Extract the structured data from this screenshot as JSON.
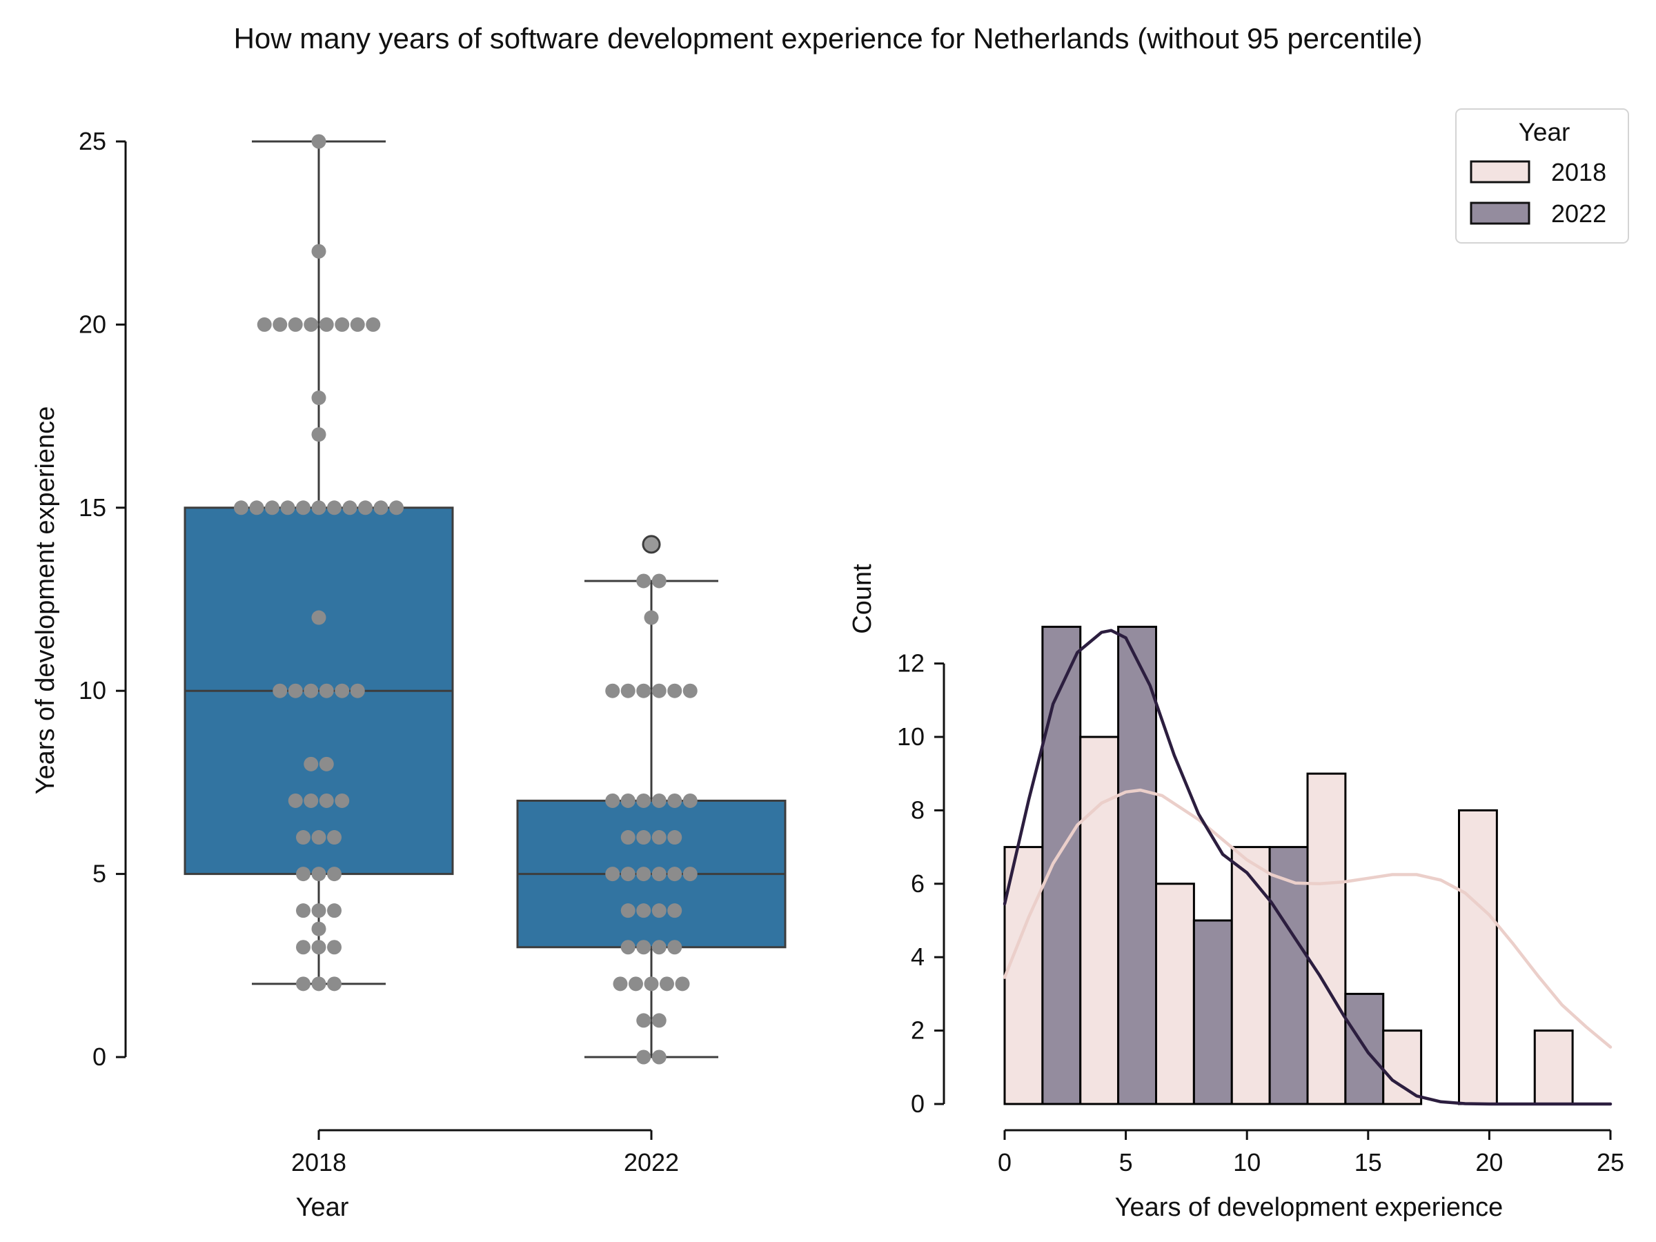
{
  "title": "How many years of software development experience for Netherlands (without 95 percentile)",
  "colors": {
    "box_fill": "#3274A1",
    "box_edge": "#3d3d3d",
    "swarm_points": "#8c8c8c",
    "hist_2018": "#F3E3E1",
    "hist_2022": "#948C9E",
    "kde_2018": "#EBCFCA",
    "kde_2022": "#2C1E3F",
    "axis": "#111111"
  },
  "chart_data": [
    {
      "type": "box",
      "xlabel": "Year",
      "ylabel": "Years of development experience",
      "categories": [
        "2018",
        "2022"
      ],
      "yticks": [
        "0",
        "5",
        "10",
        "15",
        "20",
        "25"
      ],
      "ylim": [
        -1,
        25
      ],
      "boxes": [
        {
          "name": "2018",
          "whisker_low": 2,
          "q1": 5,
          "median": 10,
          "q3": 15,
          "whisker_high": 25,
          "outliers": []
        },
        {
          "name": "2022",
          "whisker_low": 0,
          "q1": 3,
          "median": 5,
          "q3": 7,
          "whisker_high": 13,
          "outliers": [
            14
          ]
        }
      ],
      "swarm": [
        {
          "name": "2018",
          "values": [
            2,
            2,
            2,
            3,
            3,
            3,
            3.5,
            4,
            4,
            4,
            5,
            5,
            5,
            6,
            6,
            6,
            7,
            7,
            7,
            7,
            8,
            8,
            10,
            10,
            10,
            10,
            10,
            10,
            12,
            15,
            15,
            15,
            15,
            15,
            15,
            15,
            15,
            15,
            15,
            15,
            17,
            18,
            20,
            20,
            20,
            20,
            20,
            20,
            20,
            20,
            22,
            25
          ]
        },
        {
          "name": "2022",
          "values": [
            0,
            0,
            1,
            1,
            2,
            2,
            2,
            2,
            2,
            3,
            3,
            3,
            3,
            4,
            4,
            4,
            4,
            5,
            5,
            5,
            5,
            5,
            5,
            6,
            6,
            6,
            6,
            7,
            7,
            7,
            7,
            7,
            7,
            10,
            10,
            10,
            10,
            10,
            10,
            12,
            13,
            13
          ]
        }
      ]
    },
    {
      "type": "histogram",
      "xlabel": "Years of development experience",
      "ylabel": "Count",
      "xticks": [
        "0",
        "5",
        "10",
        "15",
        "20",
        "25"
      ],
      "yticks": [
        "0",
        "2",
        "4",
        "6",
        "8",
        "10",
        "12"
      ],
      "xlim": [
        0,
        25
      ],
      "ylim": [
        0,
        13
      ],
      "bins": [
        0,
        3.125,
        6.25,
        9.375,
        12.5,
        15.625,
        18.75,
        21.875,
        25
      ],
      "legend": {
        "title": "Year",
        "position": "top-right",
        "entries": [
          "2018",
          "2022"
        ]
      },
      "series": [
        {
          "name": "2018",
          "counts": [
            7,
            10,
            6,
            7,
            9,
            2,
            8,
            2
          ]
        },
        {
          "name": "2022",
          "counts": [
            13,
            13,
            5,
            7,
            3,
            0,
            0,
            0
          ]
        }
      ],
      "kde": [
        {
          "name": "2018",
          "x": [
            0,
            1,
            2,
            3,
            4,
            5,
            5.6,
            6.5,
            8,
            9,
            10,
            11,
            12,
            13,
            14,
            15,
            16,
            17,
            18,
            19,
            20,
            21,
            22,
            23,
            24,
            25
          ],
          "y": [
            3.45,
            5.1,
            6.55,
            7.6,
            8.2,
            8.5,
            8.55,
            8.4,
            7.75,
            7.2,
            6.65,
            6.25,
            6.02,
            6.0,
            6.05,
            6.15,
            6.25,
            6.25,
            6.1,
            5.75,
            5.15,
            4.35,
            3.5,
            2.7,
            2.1,
            1.55
          ]
        },
        {
          "name": "2022",
          "x": [
            0,
            1,
            2,
            3,
            4,
            4.4,
            5,
            6,
            7,
            8,
            9,
            10,
            11,
            12,
            13,
            14,
            15,
            16,
            17,
            18,
            19,
            20,
            22,
            25
          ],
          "y": [
            5.45,
            8.3,
            10.9,
            12.3,
            12.85,
            12.9,
            12.7,
            11.4,
            9.5,
            7.9,
            6.8,
            6.3,
            5.5,
            4.5,
            3.5,
            2.4,
            1.4,
            0.65,
            0.22,
            0.06,
            0.01,
            0,
            0,
            0
          ]
        }
      ]
    }
  ]
}
